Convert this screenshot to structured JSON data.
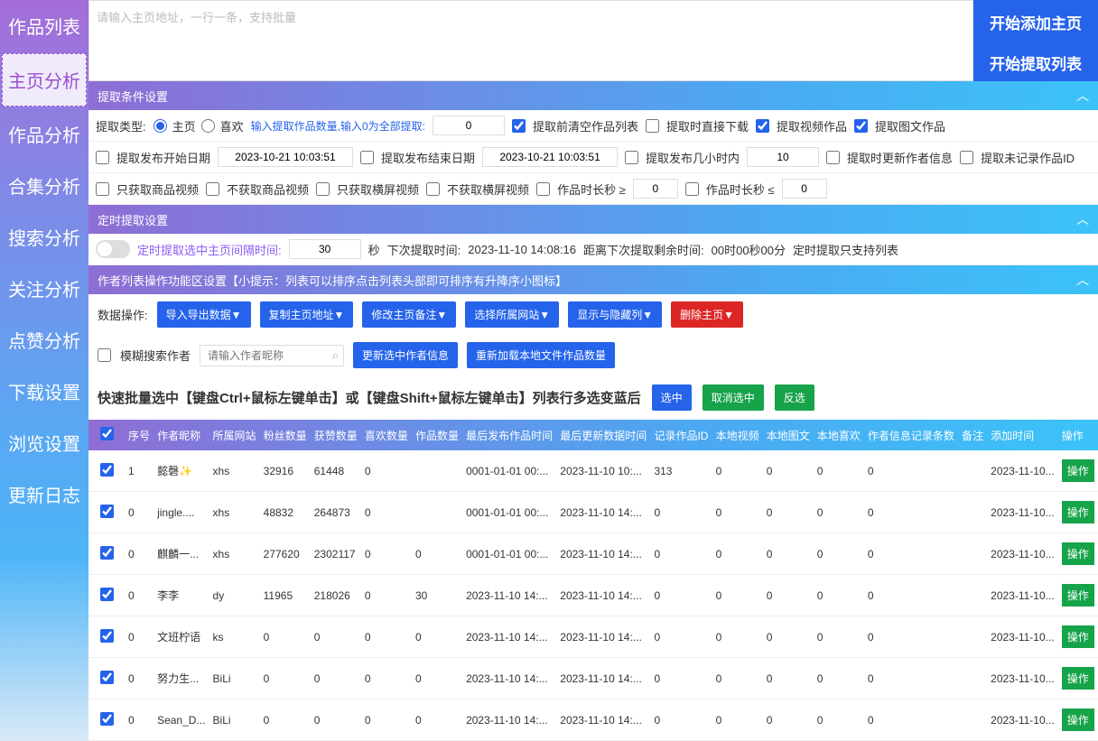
{
  "sidebar": {
    "items": [
      {
        "label": "作品列表"
      },
      {
        "label": "主页分析",
        "active": true
      },
      {
        "label": "作品分析"
      },
      {
        "label": "合集分析"
      },
      {
        "label": "搜索分析"
      },
      {
        "label": "关注分析"
      },
      {
        "label": "点赞分析"
      },
      {
        "label": "下载设置"
      },
      {
        "label": "浏览设置"
      },
      {
        "label": "更新日志"
      }
    ]
  },
  "topbar": {
    "url_placeholder": "请输入主页地址，一行一条，支持批量",
    "add_btn": "开始添加主页",
    "extract_btn": "开始提取列表"
  },
  "sections": {
    "filter_title": "提取条件设置",
    "timer_title": "定时提取设置",
    "ops_title": "作者列表操作功能区设置【小提示：列表可以排序点击列表头部即可排序有升降序小图标】"
  },
  "filters": {
    "type_label": "提取类型:",
    "type_home": "主页",
    "type_like": "喜欢",
    "count_hint": "输入提取作品数量,输入0为全部提取:",
    "count_val": "0",
    "cb_clear": "提取前清空作品列表",
    "cb_download": "提取时直接下载",
    "cb_video": "提取视频作品",
    "cb_image": "提取图文作品",
    "cb_start_date": "提取发布开始日期",
    "start_date_val": "2023-10-21 10:03:51",
    "cb_end_date": "提取发布结束日期",
    "end_date_val": "2023-10-21 10:03:51",
    "cb_hours": "提取发布几小时内",
    "hours_val": "10",
    "cb_update_author": "提取时更新作者信息",
    "cb_unrecorded": "提取未记录作品ID",
    "cb_only_goods": "只获取商品视频",
    "cb_no_goods": "不获取商品视频",
    "cb_only_landscape": "只获取横屏视频",
    "cb_no_landscape": "不获取横屏视频",
    "dur_ge_label": "作品时长秒 ≥",
    "dur_ge_val": "0",
    "dur_le_label": "作品时长秒 ≤",
    "dur_le_val": "0"
  },
  "timer": {
    "interval_label": "定时提取选中主页间隔时间:",
    "interval_val": "30",
    "sec_label": "秒",
    "next_label": "下次提取时间:",
    "next_val": "2023-11-10 14:08:16",
    "remain_label": "距离下次提取剩余时间:",
    "remain_val": "00时00秒00分",
    "support_label": "定时提取只支持列表"
  },
  "ops": {
    "data_label": "数据操作:",
    "btn_io": "导入导出数据▼",
    "btn_copy": "复制主页地址▼",
    "btn_remark": "修改主页备注▼",
    "btn_site": "选择所属网站▼",
    "btn_cols": "显示与隐藏列▼",
    "btn_del": "删除主页▼",
    "cb_fuzzy": "模糊搜索作者",
    "search_ph": "请输入作者昵称",
    "btn_update_sel": "更新选中作者信息",
    "btn_reload": "重新加载本地文件作品数量"
  },
  "tip": {
    "text": "快速批量选中【键盘Ctrl+鼠标左键单击】或【键盘Shift+鼠标左键单击】列表行多选变蓝后",
    "btn_sel": "选中",
    "btn_desel": "取消选中",
    "btn_inv": "反选"
  },
  "table": {
    "cols": [
      "序号",
      "作者昵称",
      "所属网站",
      "粉丝数量",
      "获赞数量",
      "喜欢数量",
      "作品数量",
      "最后发布作品时间",
      "最后更新数据时间",
      "记录作品ID",
      "本地视频",
      "本地图文",
      "本地喜欢",
      "作者信息记录条数",
      "备注",
      "添加时间",
      "操作"
    ],
    "op_label": "操作",
    "rows": [
      {
        "seq": "1",
        "nick": "懿磬✨",
        "site": "xhs",
        "fans": "32916",
        "likes": "61448",
        "fav": "0",
        "works": "",
        "pub": "0001-01-01 00:...",
        "upd": "2023-11-10 10:...",
        "rec": "313",
        "lv": "0",
        "li": "0",
        "lf": "0",
        "ac": "0",
        "rm": "",
        "add": "2023-11-10..."
      },
      {
        "seq": "0",
        "nick": "jingle....",
        "site": "xhs",
        "fans": "48832",
        "likes": "264873",
        "fav": "0",
        "works": "",
        "pub": "0001-01-01 00:...",
        "upd": "2023-11-10 14:...",
        "rec": "0",
        "lv": "0",
        "li": "0",
        "lf": "0",
        "ac": "0",
        "rm": "",
        "add": "2023-11-10..."
      },
      {
        "seq": "0",
        "nick": "麒麟一...",
        "site": "xhs",
        "fans": "277620",
        "likes": "2302117",
        "fav": "0",
        "works": "0",
        "pub": "0001-01-01 00:...",
        "upd": "2023-11-10 14:...",
        "rec": "0",
        "lv": "0",
        "li": "0",
        "lf": "0",
        "ac": "0",
        "rm": "",
        "add": "2023-11-10..."
      },
      {
        "seq": "0",
        "nick": "李李",
        "site": "dy",
        "fans": "11965",
        "likes": "218026",
        "fav": "0",
        "works": "30",
        "pub": "2023-11-10 14:...",
        "upd": "2023-11-10 14:...",
        "rec": "0",
        "lv": "0",
        "li": "0",
        "lf": "0",
        "ac": "0",
        "rm": "",
        "add": "2023-11-10..."
      },
      {
        "seq": "0",
        "nick": "文班柠语",
        "site": "ks",
        "fans": "0",
        "likes": "0",
        "fav": "0",
        "works": "0",
        "pub": "2023-11-10 14:...",
        "upd": "2023-11-10 14:...",
        "rec": "0",
        "lv": "0",
        "li": "0",
        "lf": "0",
        "ac": "0",
        "rm": "",
        "add": "2023-11-10..."
      },
      {
        "seq": "0",
        "nick": "努力生...",
        "site": "BiLi",
        "fans": "0",
        "likes": "0",
        "fav": "0",
        "works": "0",
        "pub": "2023-11-10 14:...",
        "upd": "2023-11-10 14:...",
        "rec": "0",
        "lv": "0",
        "li": "0",
        "lf": "0",
        "ac": "0",
        "rm": "",
        "add": "2023-11-10..."
      },
      {
        "seq": "0",
        "nick": "Sean_D...",
        "site": "BiLi",
        "fans": "0",
        "likes": "0",
        "fav": "0",
        "works": "0",
        "pub": "2023-11-10 14:...",
        "upd": "2023-11-10 14:...",
        "rec": "0",
        "lv": "0",
        "li": "0",
        "lf": "0",
        "ac": "0",
        "rm": "",
        "add": "2023-11-10..."
      }
    ]
  }
}
